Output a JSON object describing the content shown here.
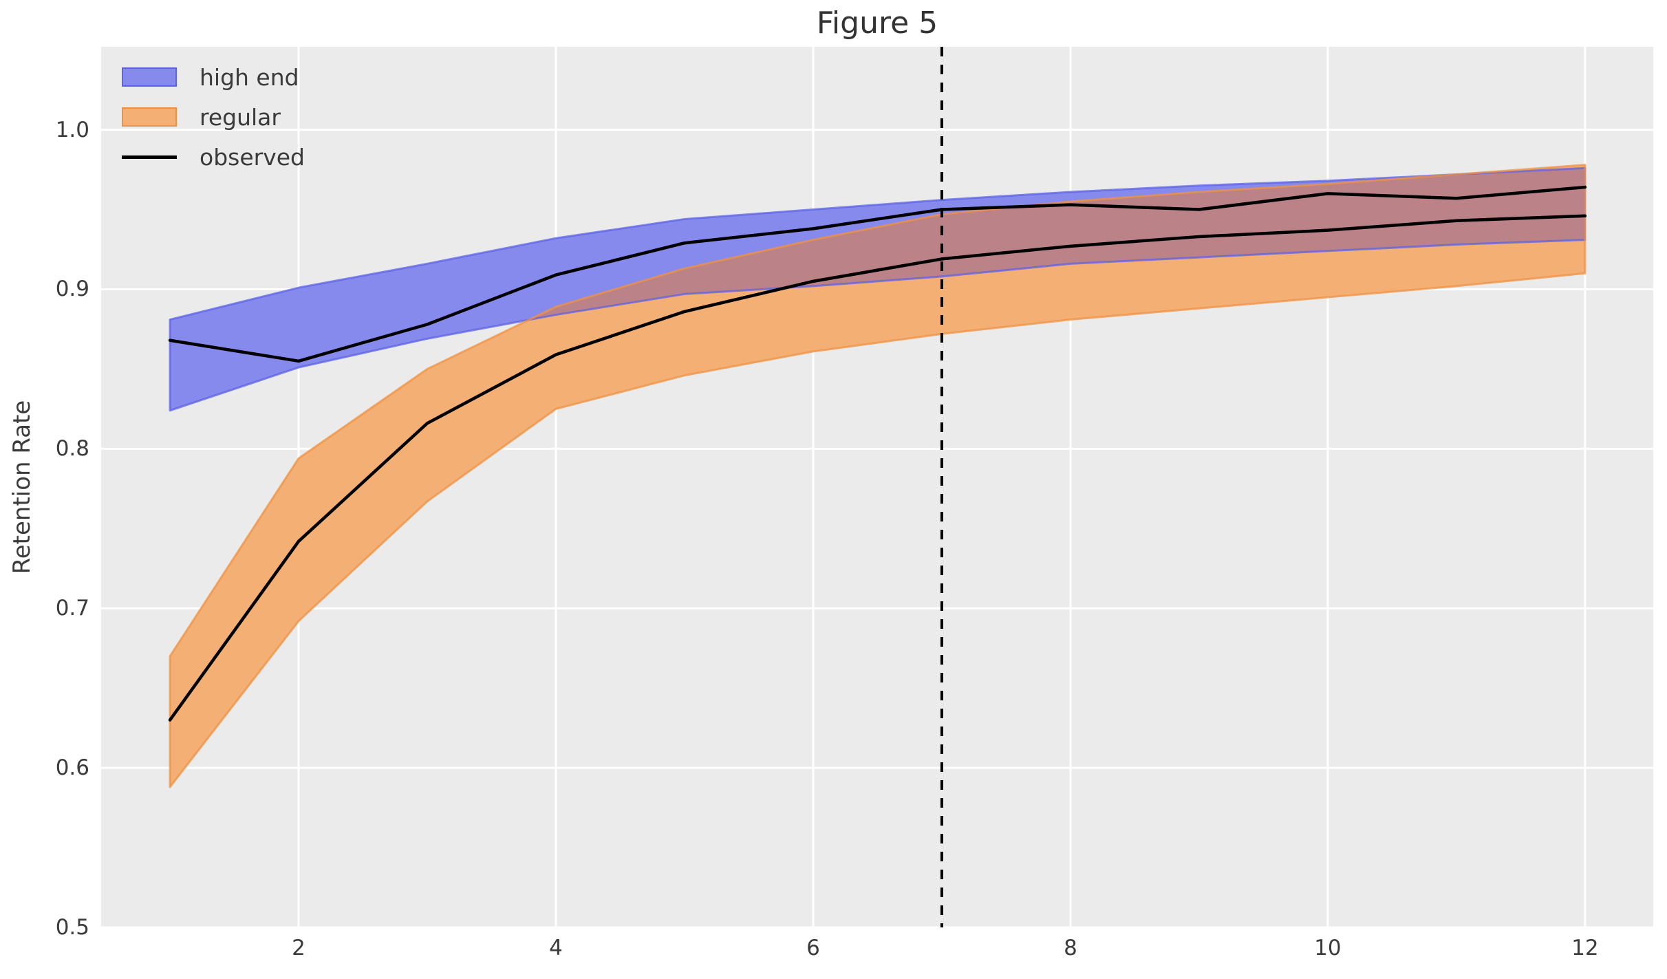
{
  "chart_data": {
    "type": "line",
    "title": "Figure 5",
    "xlabel": "",
    "ylabel": "Retention Rate",
    "x": [
      1,
      2,
      3,
      4,
      5,
      6,
      7,
      8,
      9,
      10,
      11,
      12
    ],
    "xlim": [
      0.465,
      12.53
    ],
    "ylim": [
      0.5,
      1.052
    ],
    "xticks": [
      2,
      4,
      6,
      8,
      10,
      12
    ],
    "xtick_labels": [
      "2",
      "4",
      "6",
      "8",
      "10",
      "12"
    ],
    "yticks": [
      0.5,
      0.6,
      0.7,
      0.8,
      0.9,
      1.0
    ],
    "ytick_labels": [
      "0.5",
      "0.6",
      "0.7",
      "0.8",
      "0.9",
      "1.0"
    ],
    "grid": true,
    "legend_position": "upper left",
    "series": [
      {
        "name": "high end",
        "kind": "band",
        "fill": "#868aec",
        "edge": "#5c62e5",
        "upper": [
          0.881,
          0.901,
          0.916,
          0.932,
          0.944,
          0.95,
          0.956,
          0.961,
          0.965,
          0.968,
          0.972,
          0.976
        ],
        "lower": [
          0.824,
          0.851,
          0.869,
          0.884,
          0.897,
          0.902,
          0.908,
          0.916,
          0.92,
          0.924,
          0.928,
          0.931
        ]
      },
      {
        "name": "regular",
        "kind": "band",
        "fill": "#f4af74",
        "edge": "#ef9143",
        "upper": [
          0.67,
          0.794,
          0.85,
          0.889,
          0.913,
          0.931,
          0.947,
          0.955,
          0.961,
          0.966,
          0.972,
          0.978
        ],
        "lower": [
          0.588,
          0.692,
          0.767,
          0.825,
          0.846,
          0.861,
          0.872,
          0.881,
          0.888,
          0.895,
          0.902,
          0.91
        ]
      },
      {
        "name": "observed (high end)",
        "kind": "line",
        "color": "#000000",
        "values": [
          0.868,
          0.855,
          0.878,
          0.909,
          0.929,
          0.938,
          0.95,
          0.953,
          0.95,
          0.96,
          0.957,
          0.964
        ]
      },
      {
        "name": "observed (regular)",
        "kind": "line",
        "color": "#000000",
        "values": [
          0.63,
          0.742,
          0.816,
          0.859,
          0.886,
          0.905,
          0.919,
          0.927,
          0.933,
          0.937,
          0.943,
          0.946
        ]
      }
    ],
    "overlap_fill": "#bb8288",
    "annotations": [
      {
        "type": "vline",
        "x": 7,
        "color": "#000000",
        "linestyle": "dashed"
      }
    ],
    "legend": [
      {
        "label": "high end",
        "swatch": "patch",
        "fill": "#868aec",
        "edge": "#5c62e5"
      },
      {
        "label": "regular",
        "swatch": "patch",
        "fill": "#f4af74",
        "edge": "#ef9143"
      },
      {
        "label": "observed",
        "swatch": "line",
        "color": "#000000"
      }
    ],
    "colors": {
      "axes_background": "#ebebeb",
      "grid": "#ffffff",
      "text": "#3b3b3b"
    }
  }
}
